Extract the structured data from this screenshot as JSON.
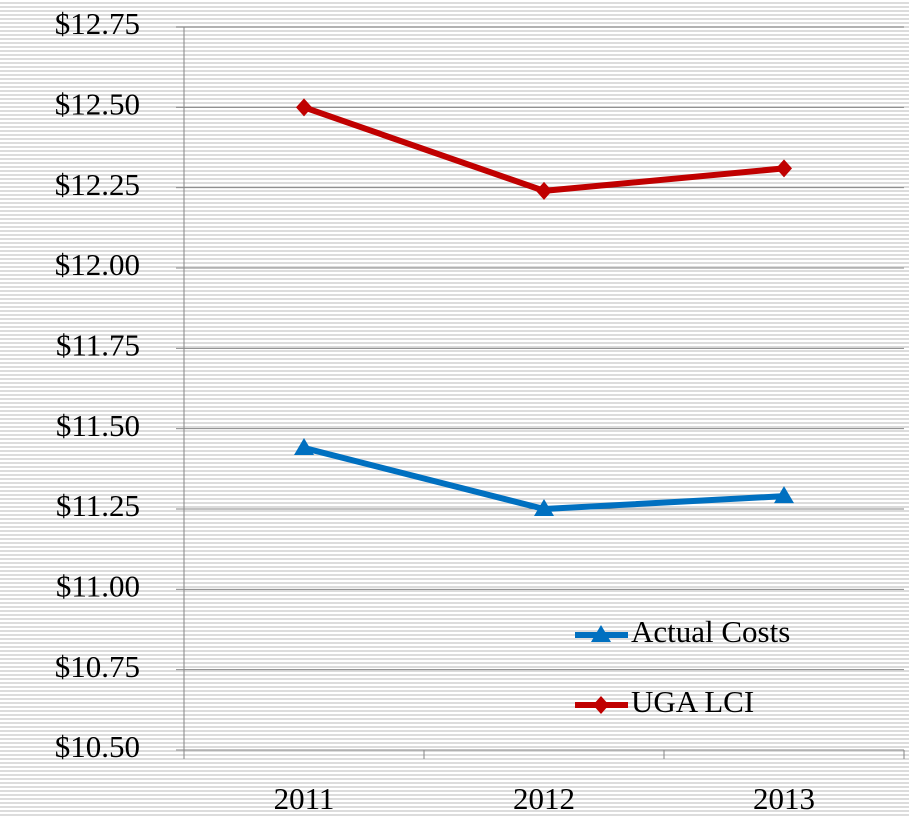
{
  "chart_data": {
    "type": "line",
    "categories": [
      "2011",
      "2012",
      "2013"
    ],
    "series": [
      {
        "name": "Actual Costs",
        "color": "#0070c0",
        "marker": "triangle",
        "values": [
          11.44,
          11.25,
          11.29
        ]
      },
      {
        "name": "UGA LCI",
        "color": "#c00000",
        "marker": "diamond",
        "values": [
          12.5,
          12.24,
          12.31
        ]
      }
    ],
    "ylim": [
      10.5,
      12.75
    ],
    "yticks": [
      {
        "value": 10.5,
        "label": "$10.50"
      },
      {
        "value": 10.75,
        "label": "$10.75"
      },
      {
        "value": 11,
        "label": "$11.00"
      },
      {
        "value": 11.25,
        "label": "$11.25"
      },
      {
        "value": 11.5,
        "label": "$11.50"
      },
      {
        "value": 11.75,
        "label": "$11.75"
      },
      {
        "value": 12,
        "label": "$12.00"
      },
      {
        "value": 12.25,
        "label": "$12.25"
      },
      {
        "value": 12.5,
        "label": "$12.50"
      },
      {
        "value": 12.75,
        "label": "$12.75"
      }
    ],
    "grid": true,
    "legend": "lower right"
  }
}
